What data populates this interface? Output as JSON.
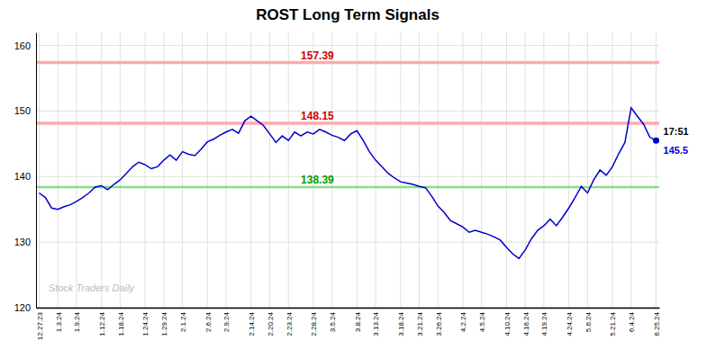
{
  "chart_data": {
    "type": "line",
    "title": "ROST Long Term Signals",
    "categories": [
      "12.27.23",
      null,
      null,
      "1.3.24",
      null,
      null,
      "1.9.24",
      null,
      null,
      null,
      "1.12.24",
      null,
      null,
      "1.18.24",
      null,
      null,
      null,
      "1.24.24",
      null,
      null,
      "1.29.24",
      null,
      null,
      "2.1.24",
      null,
      null,
      null,
      "2.6.24",
      null,
      null,
      "2.9.24",
      null,
      null,
      null,
      "2.14.24",
      null,
      null,
      "2.20.24",
      null,
      null,
      "2.23.24",
      null,
      null,
      null,
      "2.28.24",
      null,
      null,
      "3.5.24",
      null,
      null,
      null,
      "3.8.24",
      null,
      null,
      "3.13.24",
      null,
      null,
      null,
      "3.18.24",
      null,
      null,
      "3.21.24",
      null,
      null,
      "3.26.24",
      null,
      null,
      null,
      "4.2.24",
      null,
      null,
      "4.5.24",
      null,
      null,
      null,
      "4.10.24",
      null,
      null,
      "4.16.24",
      null,
      null,
      "4.19.24",
      null,
      null,
      null,
      "4.24.24",
      null,
      null,
      "5.6.24",
      null,
      null,
      null,
      "5.21.24",
      null,
      null,
      "6.4.24",
      null,
      null,
      null,
      "6.25.24"
    ],
    "values": [
      137.5,
      136.8,
      135.2,
      135.0,
      135.4,
      135.7,
      136.2,
      136.8,
      137.5,
      138.4,
      138.6,
      138.0,
      138.8,
      139.5,
      140.5,
      141.5,
      142.2,
      141.8,
      141.2,
      141.5,
      142.5,
      143.3,
      142.5,
      143.8,
      143.4,
      143.2,
      144.2,
      145.3,
      145.7,
      146.3,
      146.8,
      147.2,
      146.6,
      148.5,
      149.2,
      148.5,
      147.8,
      146.5,
      145.2,
      146.2,
      145.5,
      146.8,
      146.2,
      146.8,
      146.5,
      147.2,
      146.8,
      146.3,
      146.0,
      145.5,
      146.5,
      147.0,
      145.5,
      143.8,
      142.5,
      141.5,
      140.5,
      139.8,
      139.2,
      139.0,
      138.8,
      138.5,
      138.3,
      137.0,
      135.5,
      134.5,
      133.3,
      132.8,
      132.3,
      131.5,
      131.8,
      131.5,
      131.2,
      130.8,
      130.3,
      129.2,
      128.2,
      127.5,
      128.8,
      130.5,
      131.8,
      132.5,
      133.5,
      132.5,
      133.8,
      135.2,
      136.8,
      138.5,
      137.5,
      139.5,
      141.0,
      140.2,
      141.5,
      143.5,
      145.2,
      150.5,
      149.2,
      148.0,
      146.0,
      145.5
    ],
    "color": "#0000cc",
    "reference_lines": [
      {
        "value": 157.39,
        "color": "#ffaaaa",
        "label_color": "#cc0000"
      },
      {
        "value": 148.15,
        "color": "#ffaaaa",
        "label_color": "#cc0000"
      },
      {
        "value": 138.39,
        "color": "#88dd88",
        "label_color": "#009900"
      }
    ],
    "last_point": {
      "label": "17:51",
      "value": 145.5
    },
    "annotations": [
      {
        "text": "Stock Traders Daily",
        "color": "#bbbbbb"
      }
    ],
    "ylim": [
      120,
      162
    ],
    "yticks": [
      120,
      130,
      140,
      150,
      160
    ],
    "grid": true
  }
}
